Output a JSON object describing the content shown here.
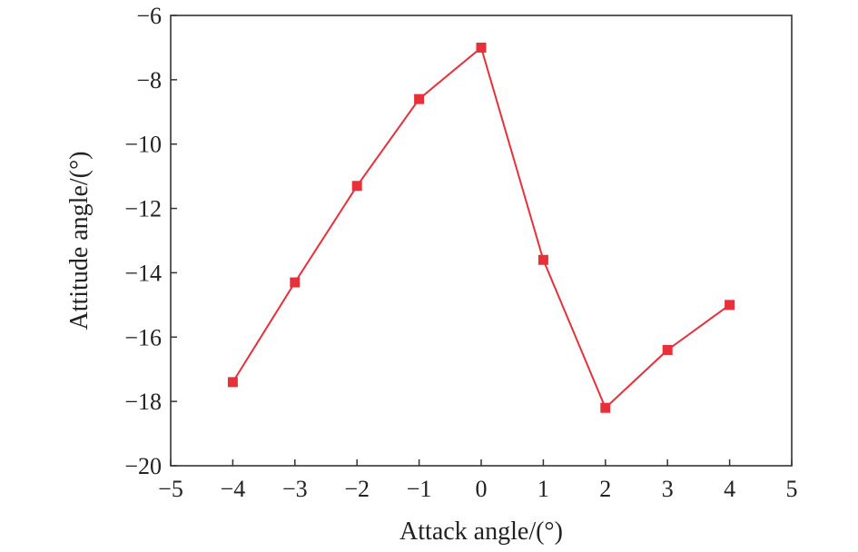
{
  "chart_data": {
    "type": "line",
    "title": "",
    "xlabel": "Attack angle/(°)",
    "ylabel": "Attitude angle/(°)",
    "xlim": [
      -5,
      5
    ],
    "ylim": [
      -20,
      -6
    ],
    "xticks": [
      -5,
      -4,
      -3,
      -2,
      -1,
      0,
      1,
      2,
      3,
      4,
      5
    ],
    "yticks": [
      -20,
      -18,
      -16,
      -14,
      -12,
      -10,
      -8,
      -6
    ],
    "xtick_labels": [
      "−5",
      "−4",
      "−3",
      "−2",
      "−1",
      "0",
      "1",
      "2",
      "3",
      "4",
      "5"
    ],
    "ytick_labels": [
      "−20",
      "−18",
      "−16",
      "−14",
      "−12",
      "−10",
      "−8",
      "−6"
    ],
    "grid": false,
    "legend": "none",
    "series": [
      {
        "color": "#e8303a",
        "marker": "square",
        "x": [
          -4,
          -3,
          -2,
          -1,
          0,
          1,
          2,
          3,
          4
        ],
        "y": [
          -17.4,
          -14.3,
          -11.3,
          -8.6,
          -7.0,
          -13.6,
          -18.2,
          -16.4,
          -15.0
        ]
      }
    ]
  }
}
